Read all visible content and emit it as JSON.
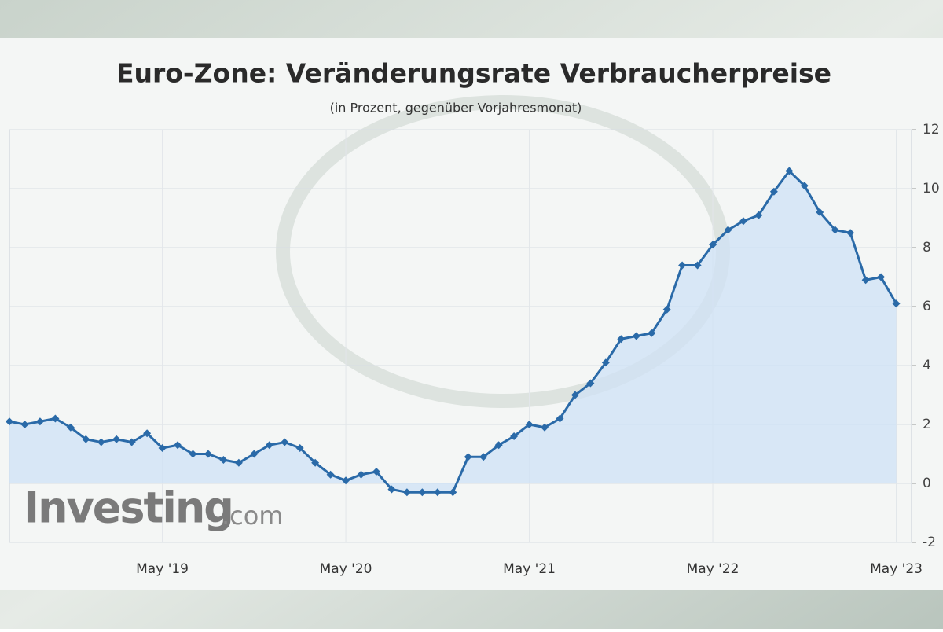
{
  "chart_data": {
    "type": "line",
    "title": "Euro-Zone: Veränderungsrate Verbraucherpreise",
    "subtitle": "(in Prozent, gegenüber Vorjahresmonat)",
    "watermark": {
      "brand": "Investing",
      "suffix": ".com"
    },
    "x": [
      "2018-07",
      "2018-08",
      "2018-09",
      "2018-10",
      "2018-11",
      "2018-12",
      "2019-01",
      "2019-02",
      "2019-03",
      "2019-04",
      "2019-05",
      "2019-06",
      "2019-07",
      "2019-08",
      "2019-09",
      "2019-10",
      "2019-11",
      "2019-12",
      "2020-01",
      "2020-02",
      "2020-03",
      "2020-04",
      "2020-05",
      "2020-06",
      "2020-07",
      "2020-08",
      "2020-09",
      "2020-10",
      "2020-11",
      "2020-12",
      "2021-01",
      "2021-02",
      "2021-03",
      "2021-04",
      "2021-05",
      "2021-06",
      "2021-07",
      "2021-08",
      "2021-09",
      "2021-10",
      "2021-11",
      "2021-12",
      "2022-01",
      "2022-02",
      "2022-03",
      "2022-04",
      "2022-05",
      "2022-06",
      "2022-07",
      "2022-08",
      "2022-09",
      "2022-10",
      "2022-11",
      "2022-12",
      "2023-01",
      "2023-02",
      "2023-03",
      "2023-04",
      "2023-05"
    ],
    "series": [
      {
        "name": "Euro-Zone",
        "color": "#2a6aa8",
        "values": [
          2.1,
          2.0,
          2.1,
          2.2,
          1.9,
          1.5,
          1.4,
          1.5,
          1.4,
          1.7,
          1.2,
          1.3,
          1.0,
          1.0,
          0.8,
          0.7,
          1.0,
          1.3,
          1.4,
          1.2,
          0.7,
          0.3,
          0.1,
          0.3,
          0.4,
          -0.2,
          -0.3,
          -0.3,
          -0.3,
          -0.3,
          0.9,
          0.9,
          1.3,
          1.6,
          2.0,
          1.9,
          2.2,
          3.0,
          3.4,
          4.1,
          4.9,
          5.0,
          5.1,
          5.9,
          7.4,
          7.4,
          8.1,
          8.6,
          8.9,
          9.1,
          9.9,
          10.6,
          10.1,
          9.2,
          8.6,
          8.5,
          6.9,
          7.0,
          6.1
        ]
      }
    ],
    "xlim": [
      "2018-07",
      "2023-06"
    ],
    "xticks": [
      {
        "value": "2019-05",
        "label": "May '19"
      },
      {
        "value": "2020-05",
        "label": "May '20"
      },
      {
        "value": "2021-05",
        "label": "May '21"
      },
      {
        "value": "2022-05",
        "label": "May '22"
      },
      {
        "value": "2023-05",
        "label": "May '23"
      }
    ],
    "ylim": [
      -2,
      12
    ],
    "yticks": [
      -2,
      0,
      2,
      4,
      6,
      8,
      10,
      12
    ],
    "grid": true,
    "fill": "#cfe2f5"
  }
}
